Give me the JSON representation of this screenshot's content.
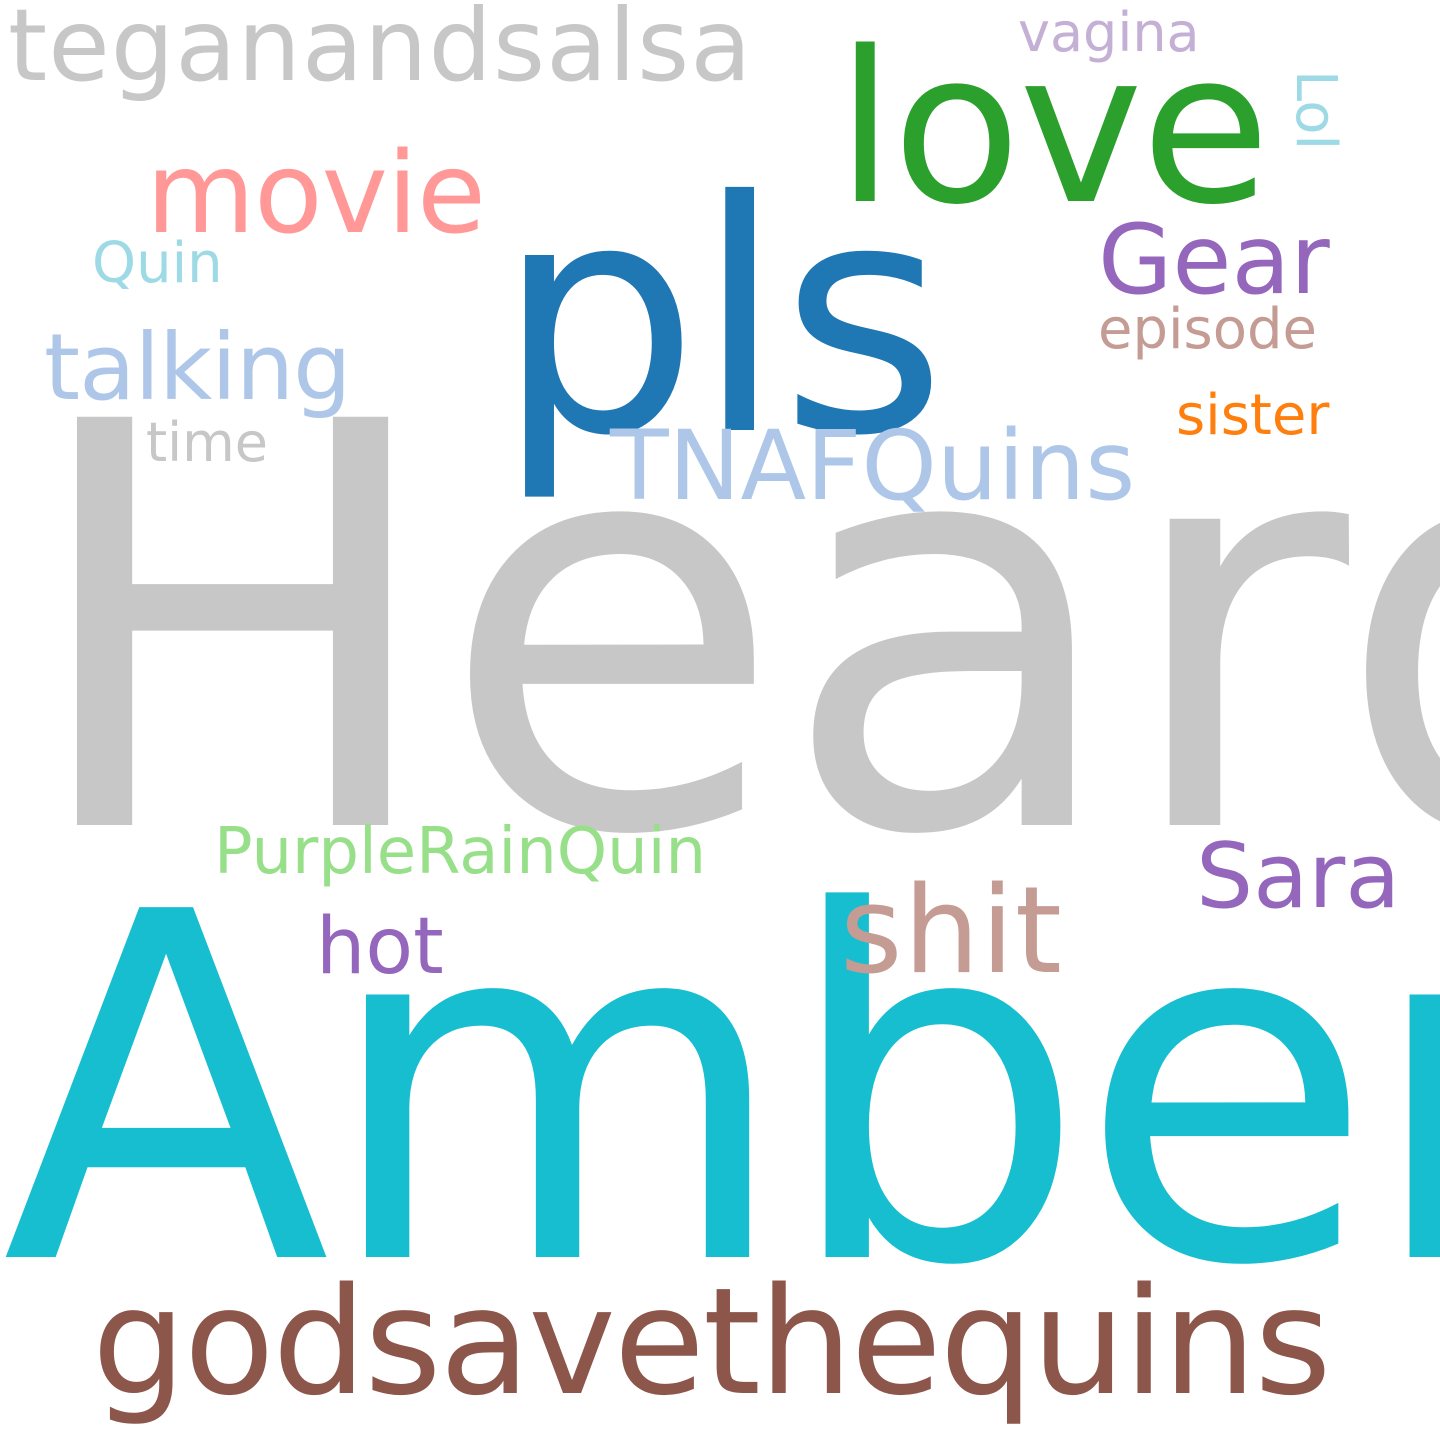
{
  "word_cloud": {
    "background_color": "#ffffff",
    "words": {
      "heard": {
        "text": "Heard",
        "color": "#c7c7c7"
      },
      "amber": {
        "text": "Amber",
        "color": "#17becf"
      },
      "pls": {
        "text": "pls",
        "color": "#1f77b4"
      },
      "love": {
        "text": "love",
        "color": "#2ca02c"
      },
      "godsavethequins": {
        "text": "godsavethequins",
        "color": "#8c564b"
      },
      "teganandsalsa": {
        "text": "teganandsalsa",
        "color": "#c7c7c7"
      },
      "movie": {
        "text": "movie",
        "color": "#ff9896"
      },
      "shit": {
        "text": "shit",
        "color": "#c49c94"
      },
      "gear": {
        "text": "Gear",
        "color": "#9467bd"
      },
      "sara": {
        "text": "Sara",
        "color": "#9467bd"
      },
      "talking": {
        "text": "talking",
        "color": "#aec7e8"
      },
      "tnafquins": {
        "text": "TNAFQuins",
        "color": "#aec7e8"
      },
      "hot": {
        "text": "hot",
        "color": "#9467bd"
      },
      "purplerainquin": {
        "text": "PurpleRainQuin",
        "color": "#98df8a"
      },
      "episode": {
        "text": "episode",
        "color": "#c49c94"
      },
      "sister": {
        "text": "sister",
        "color": "#ff7f0e"
      },
      "quin": {
        "text": "Quin",
        "color": "#9edae5"
      },
      "time": {
        "text": "time",
        "color": "#c7c7c7"
      },
      "vagina": {
        "text": "vagina",
        "color": "#c5b0d5"
      },
      "lol": {
        "text": "Lol",
        "color": "#9edae5",
        "orientation": "vertical"
      }
    }
  }
}
